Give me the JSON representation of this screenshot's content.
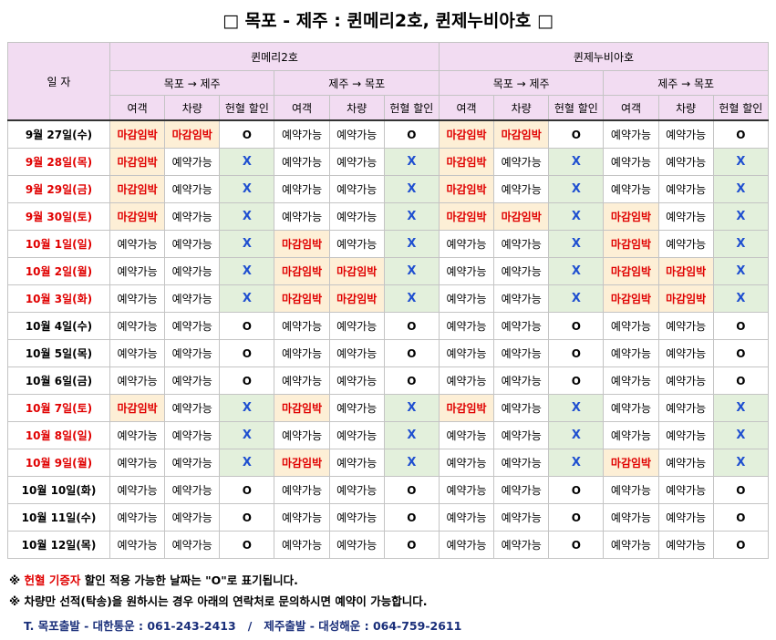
{
  "title": "□ 목포 - 제주 : 퀸메리2호, 퀸제누비아호 □",
  "table": {
    "date_header": "일 자",
    "ships": [
      {
        "name": "퀸메리2호",
        "routes": [
          {
            "name": "목포 → 제주",
            "columns": [
              "여객",
              "차량",
              "헌혈 할인"
            ]
          },
          {
            "name": "제주 → 목포",
            "columns": [
              "여객",
              "차량",
              "헌혈 할인"
            ]
          }
        ]
      },
      {
        "name": "퀸제누비아호",
        "routes": [
          {
            "name": "목포 → 제주",
            "columns": [
              "여객",
              "차량",
              "헌혈 할인"
            ]
          },
          {
            "name": "제주 → 목포",
            "columns": [
              "여객",
              "차량",
              "헌혈 할인"
            ]
          }
        ]
      }
    ],
    "rows": [
      {
        "date": "9월 27일(수)",
        "cells": [
          "마감임박",
          "마감임박",
          "O",
          "예약가능",
          "예약가능",
          "O",
          "마감임박",
          "마감임박",
          "O",
          "예약가능",
          "예약가능",
          "O"
        ]
      },
      {
        "date": "9월 28일(목)",
        "cells": [
          "마감임박",
          "예약가능",
          "X",
          "예약가능",
          "예약가능",
          "X",
          "마감임박",
          "예약가능",
          "X",
          "예약가능",
          "예약가능",
          "X"
        ]
      },
      {
        "date": "9월 29일(금)",
        "cells": [
          "마감임박",
          "예약가능",
          "X",
          "예약가능",
          "예약가능",
          "X",
          "마감임박",
          "예약가능",
          "X",
          "예약가능",
          "예약가능",
          "X"
        ]
      },
      {
        "date": "9월 30일(토)",
        "cells": [
          "마감임박",
          "예약가능",
          "X",
          "예약가능",
          "예약가능",
          "X",
          "마감임박",
          "마감임박",
          "X",
          "마감임박",
          "예약가능",
          "X"
        ]
      },
      {
        "date": "10월 1일(일)",
        "cells": [
          "예약가능",
          "예약가능",
          "X",
          "마감임박",
          "예약가능",
          "X",
          "예약가능",
          "예약가능",
          "X",
          "마감임박",
          "예약가능",
          "X"
        ]
      },
      {
        "date": "10월 2일(월)",
        "cells": [
          "예약가능",
          "예약가능",
          "X",
          "마감임박",
          "마감임박",
          "X",
          "예약가능",
          "예약가능",
          "X",
          "마감임박",
          "마감임박",
          "X"
        ]
      },
      {
        "date": "10월 3일(화)",
        "cells": [
          "예약가능",
          "예약가능",
          "X",
          "마감임박",
          "마감임박",
          "X",
          "예약가능",
          "예약가능",
          "X",
          "마감임박",
          "마감임박",
          "X"
        ]
      },
      {
        "date": "10월 4일(수)",
        "cells": [
          "예약가능",
          "예약가능",
          "O",
          "예약가능",
          "예약가능",
          "O",
          "예약가능",
          "예약가능",
          "O",
          "예약가능",
          "예약가능",
          "O"
        ]
      },
      {
        "date": "10월 5일(목)",
        "cells": [
          "예약가능",
          "예약가능",
          "O",
          "예약가능",
          "예약가능",
          "O",
          "예약가능",
          "예약가능",
          "O",
          "예약가능",
          "예약가능",
          "O"
        ]
      },
      {
        "date": "10월 6일(금)",
        "cells": [
          "예약가능",
          "예약가능",
          "O",
          "예약가능",
          "예약가능",
          "O",
          "예약가능",
          "예약가능",
          "O",
          "예약가능",
          "예약가능",
          "O"
        ]
      },
      {
        "date": "10월 7일(토)",
        "cells": [
          "마감임박",
          "예약가능",
          "X",
          "마감임박",
          "예약가능",
          "X",
          "마감임박",
          "예약가능",
          "X",
          "예약가능",
          "예약가능",
          "X"
        ]
      },
      {
        "date": "10월 8일(일)",
        "cells": [
          "예약가능",
          "예약가능",
          "X",
          "예약가능",
          "예약가능",
          "X",
          "예약가능",
          "예약가능",
          "X",
          "예약가능",
          "예약가능",
          "X"
        ]
      },
      {
        "date": "10월 9일(월)",
        "cells": [
          "예약가능",
          "예약가능",
          "X",
          "마감임박",
          "예약가능",
          "X",
          "예약가능",
          "예약가능",
          "X",
          "마감임박",
          "예약가능",
          "X"
        ]
      },
      {
        "date": "10월 10일(화)",
        "cells": [
          "예약가능",
          "예약가능",
          "O",
          "예약가능",
          "예약가능",
          "O",
          "예약가능",
          "예약가능",
          "O",
          "예약가능",
          "예약가능",
          "O"
        ]
      },
      {
        "date": "10월 11일(수)",
        "cells": [
          "예약가능",
          "예약가능",
          "O",
          "예약가능",
          "예약가능",
          "O",
          "예약가능",
          "예약가능",
          "O",
          "예약가능",
          "예약가능",
          "O"
        ]
      },
      {
        "date": "10월 12일(목)",
        "cells": [
          "예약가능",
          "예약가능",
          "O",
          "예약가능",
          "예약가능",
          "O",
          "예약가능",
          "예약가능",
          "O",
          "예약가능",
          "예약가능",
          "O"
        ]
      }
    ]
  },
  "notes": [
    {
      "mark": "※",
      "parts": [
        "헌혈 기증자",
        " 할인 적용 가능한 날짜는 \"O\"로 표기됩니다."
      ]
    },
    {
      "mark": "※",
      "parts": [
        "차량만 선적(탁송)을 원하시는 경우 아래의 연락처로 문의하시면 예약이 가능합니다."
      ]
    }
  ],
  "contact": "T. 목포출발 - 대한통운 : 061-243-2413   /   제주출발 - 대성해운 : 064-759-2611"
}
